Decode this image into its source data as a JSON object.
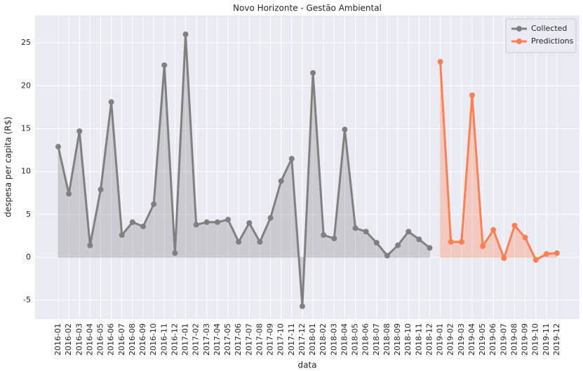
{
  "chart_data": {
    "type": "line",
    "title": "Novo Horizonte - Gestão Ambiental",
    "xlabel": "data",
    "ylabel": "despesa per capita (R$)",
    "categories": [
      "2016-01",
      "2016-02",
      "2016-03",
      "2016-04",
      "2016-05",
      "2016-06",
      "2016-07",
      "2016-08",
      "2016-09",
      "2016-10",
      "2016-11",
      "2016-12",
      "2017-01",
      "2017-02",
      "2017-03",
      "2017-04",
      "2017-05",
      "2017-06",
      "2017-07",
      "2017-08",
      "2017-09",
      "2017-10",
      "2017-11",
      "2017-12",
      "2018-01",
      "2018-02",
      "2018-03",
      "2018-04",
      "2018-05",
      "2018-06",
      "2018-07",
      "2018-08",
      "2018-09",
      "2018-10",
      "2018-11",
      "2018-12",
      "2019-01",
      "2019-02",
      "2019-03",
      "2019-04",
      "2019-05",
      "2019-06",
      "2019-07",
      "2019-08",
      "2019-09",
      "2019-10",
      "2019-11",
      "2019-12"
    ],
    "series": [
      {
        "name": "Collected",
        "color": "#808080",
        "values": [
          12.9,
          7.4,
          14.7,
          1.4,
          7.9,
          18.1,
          2.6,
          4.1,
          3.6,
          6.2,
          22.4,
          0.5,
          26.0,
          3.8,
          4.1,
          4.1,
          4.4,
          1.8,
          4.0,
          1.8,
          4.6,
          8.9,
          11.5,
          -5.7,
          21.5,
          2.6,
          2.2,
          14.9,
          3.4,
          3.0,
          1.7,
          0.2,
          1.4,
          3.0,
          2.1,
          1.1,
          null,
          null,
          null,
          null,
          null,
          null,
          null,
          null,
          null,
          null,
          null,
          null
        ]
      },
      {
        "name": "Predictions",
        "color": "#ff7f50",
        "values": [
          null,
          null,
          null,
          null,
          null,
          null,
          null,
          null,
          null,
          null,
          null,
          null,
          null,
          null,
          null,
          null,
          null,
          null,
          null,
          null,
          null,
          null,
          null,
          null,
          null,
          null,
          null,
          null,
          null,
          null,
          null,
          null,
          null,
          null,
          null,
          null,
          22.8,
          1.8,
          1.8,
          18.9,
          1.3,
          3.2,
          -0.1,
          3.7,
          2.3,
          -0.3,
          0.4,
          0.5
        ]
      }
    ],
    "ylim": [
      -7.2,
      28.2
    ],
    "yticks": [
      -5,
      0,
      5,
      10,
      15,
      20,
      25
    ],
    "grid": true,
    "legend": "upper right",
    "fill_area": true
  }
}
